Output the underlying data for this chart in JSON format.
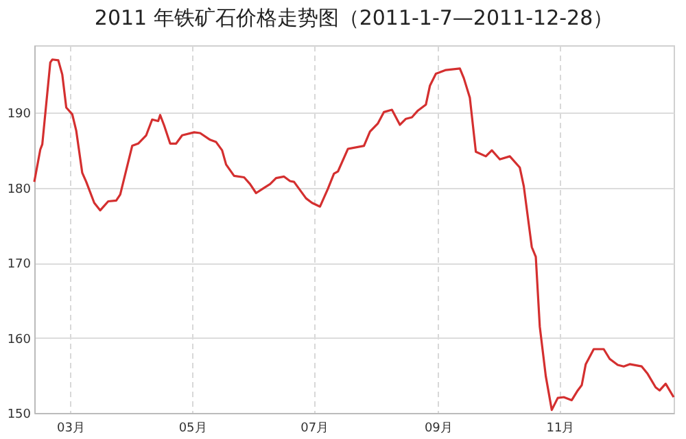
{
  "chart_data": {
    "type": "line",
    "title": "2011 年铁矿石价格走势图（2011-1-7—2011-12-28）",
    "x": [
      "2011-02-11",
      "2011-02-14",
      "2011-02-15",
      "2011-02-19",
      "2011-02-20",
      "2011-02-23",
      "2011-02-25",
      "2011-02-27",
      "2011-03-02",
      "2011-03-04",
      "2011-03-07",
      "2011-03-09",
      "2011-03-13",
      "2011-03-16",
      "2011-03-20",
      "2011-03-24",
      "2011-03-26",
      "2011-04-01",
      "2011-04-04",
      "2011-04-08",
      "2011-04-11",
      "2011-04-14",
      "2011-04-15",
      "2011-04-17",
      "2011-04-20",
      "2011-04-23",
      "2011-04-26",
      "2011-05-02",
      "2011-05-05",
      "2011-05-10",
      "2011-05-13",
      "2011-05-16",
      "2011-05-18",
      "2011-05-22",
      "2011-05-27",
      "2011-05-30",
      "2011-06-02",
      "2011-06-06",
      "2011-06-09",
      "2011-06-12",
      "2011-06-16",
      "2011-06-19",
      "2011-06-21",
      "2011-06-27",
      "2011-06-30",
      "2011-07-04",
      "2011-07-08",
      "2011-07-11",
      "2011-07-13",
      "2011-07-18",
      "2011-07-26",
      "2011-07-29",
      "2011-08-02",
      "2011-08-05",
      "2011-08-09",
      "2011-08-13",
      "2011-08-16",
      "2011-08-19",
      "2011-08-22",
      "2011-08-26",
      "2011-08-28",
      "2011-08-31",
      "2011-09-05",
      "2011-09-12",
      "2011-09-14",
      "2011-09-17",
      "2011-09-20",
      "2011-09-25",
      "2011-09-28",
      "2011-10-02",
      "2011-10-07",
      "2011-10-12",
      "2011-10-14",
      "2011-10-18",
      "2011-10-20",
      "2011-10-22",
      "2011-10-25",
      "2011-10-28",
      "2011-10-31",
      "2011-11-03",
      "2011-11-07",
      "2011-11-10",
      "2011-11-12",
      "2011-11-14",
      "2011-11-18",
      "2011-11-23",
      "2011-11-26",
      "2011-11-30",
      "2011-12-03",
      "2011-12-06",
      "2011-12-12",
      "2011-12-15",
      "2011-12-19",
      "2011-12-21",
      "2011-12-24",
      "2011-12-28"
    ],
    "series": [
      {
        "color": "#d42f2f",
        "values": [
          180.8,
          185.1,
          185.8,
          196.7,
          197.1,
          197.0,
          195.1,
          190.7,
          189.8,
          187.6,
          182.0,
          180.8,
          178.0,
          177.0,
          178.2,
          178.3,
          179.1,
          185.6,
          185.9,
          187.0,
          189.1,
          188.9,
          189.7,
          188.3,
          185.9,
          185.9,
          187.0,
          187.4,
          187.3,
          186.4,
          186.1,
          185.0,
          183.1,
          181.6,
          181.4,
          180.5,
          179.3,
          180.0,
          180.5,
          181.3,
          181.5,
          180.9,
          180.8,
          178.6,
          178.0,
          177.5,
          179.9,
          181.9,
          182.2,
          185.2,
          185.6,
          187.5,
          188.6,
          190.1,
          190.4,
          188.4,
          189.2,
          189.4,
          190.3,
          191.1,
          193.6,
          195.2,
          195.7,
          195.9,
          194.6,
          192.0,
          184.8,
          184.2,
          185.0,
          183.8,
          184.2,
          182.7,
          180.2,
          172.1,
          170.8,
          161.5,
          154.9,
          150.4,
          152.0,
          152.1,
          151.7,
          153.0,
          153.7,
          156.5,
          158.5,
          158.5,
          157.2,
          156.4,
          156.2,
          156.5,
          156.2,
          155.2,
          153.4,
          153.0,
          153.9,
          152.1
        ]
      }
    ],
    "xlim": [
      "2011-02-11",
      "2011-12-28"
    ],
    "xticks": [
      {
        "value": "2011-03-01",
        "label": "03月"
      },
      {
        "value": "2011-05-01",
        "label": "05月"
      },
      {
        "value": "2011-07-01",
        "label": "07月"
      },
      {
        "value": "2011-09-01",
        "label": "09月"
      },
      {
        "value": "2011-11-01",
        "label": "11月"
      }
    ],
    "ylim": [
      150,
      199
    ],
    "yticks": [
      150,
      160,
      170,
      180,
      190
    ],
    "grid": true,
    "marker": "none",
    "line_style": "solid"
  }
}
